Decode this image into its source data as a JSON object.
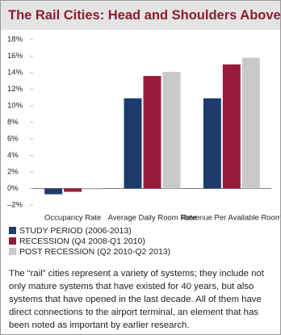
{
  "chart_data": {
    "type": "bar",
    "title": "The Rail Cities: Head and Shoulders Above",
    "categories": [
      "Occupancy Rate",
      "Average Daily Room Rate",
      "Revenue Per Available Room"
    ],
    "series": [
      {
        "name": "STUDY PERIOD (2006-2013)",
        "color": "#1d3c6c",
        "values": [
          -0.7,
          10.9,
          10.9
        ]
      },
      {
        "name": "RECESSION (Q4 2008-Q1 2010)",
        "color": "#9a1a3c",
        "values": [
          -0.4,
          13.6,
          15.0
        ]
      },
      {
        "name": "POST RECESSION (Q2 2010-Q2 2013)",
        "color": "#c9c9c9",
        "values": [
          -0.1,
          14.1,
          15.8
        ]
      }
    ],
    "ylim": [
      -2,
      18
    ],
    "yticks": [
      {
        "value": -2,
        "label": "–2%"
      },
      {
        "value": 0,
        "label": "0%"
      },
      {
        "value": 2,
        "label": "2%"
      },
      {
        "value": 4,
        "label": "4%"
      },
      {
        "value": 6,
        "label": "6%"
      },
      {
        "value": 8,
        "label": "8%"
      },
      {
        "value": 10,
        "label": "10%"
      },
      {
        "value": 12,
        "label": "12%"
      },
      {
        "value": 14,
        "label": "14%"
      },
      {
        "value": 16,
        "label": "16%"
      },
      {
        "value": 18,
        "label": "18%"
      }
    ],
    "grid": false,
    "legend": "bottom",
    "note": "The “rail” cities represent a variety of systems; they include not only mature systems that have existed for 40 years, but also systems that have opened in the last decade. All of them have direct connections to the airport terminal, an element that has been noted as important by earlier research."
  }
}
